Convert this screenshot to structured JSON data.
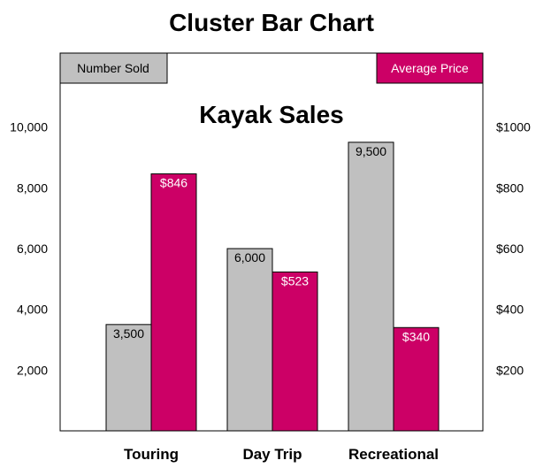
{
  "page_title": "Cluster Bar Chart",
  "chart_data": {
    "type": "bar",
    "title": "Kayak Sales",
    "categories": [
      "Touring",
      "Day Trip",
      "Recreational"
    ],
    "series": [
      {
        "name": "Number Sold",
        "axis": "left",
        "color": "#c0c0c0",
        "values": [
          3500,
          6000,
          9500
        ],
        "labels": [
          "3,500",
          "6,000",
          "9,500"
        ],
        "label_color": "#000000"
      },
      {
        "name": "Average Price",
        "axis": "right",
        "color": "#cc0066",
        "values": [
          846,
          523,
          340
        ],
        "labels": [
          "$846",
          "$523",
          "$340"
        ],
        "label_color": "#ffffff"
      }
    ],
    "left_axis": {
      "ylim": [
        0,
        12000
      ],
      "ticks": [
        2000,
        4000,
        6000,
        8000,
        10000
      ],
      "tick_labels": [
        "2,000",
        "4,000",
        "6,000",
        "8,000",
        "10,000"
      ]
    },
    "right_axis": {
      "ylim": [
        0,
        1200
      ],
      "ticks": [
        200,
        400,
        600,
        800,
        1000
      ],
      "tick_labels": [
        "$200",
        "$400",
        "$600",
        "$800",
        "$1000"
      ]
    },
    "legend_placement": "top-left and top-right",
    "grid": false,
    "xlabel": "",
    "ylabel": ""
  }
}
